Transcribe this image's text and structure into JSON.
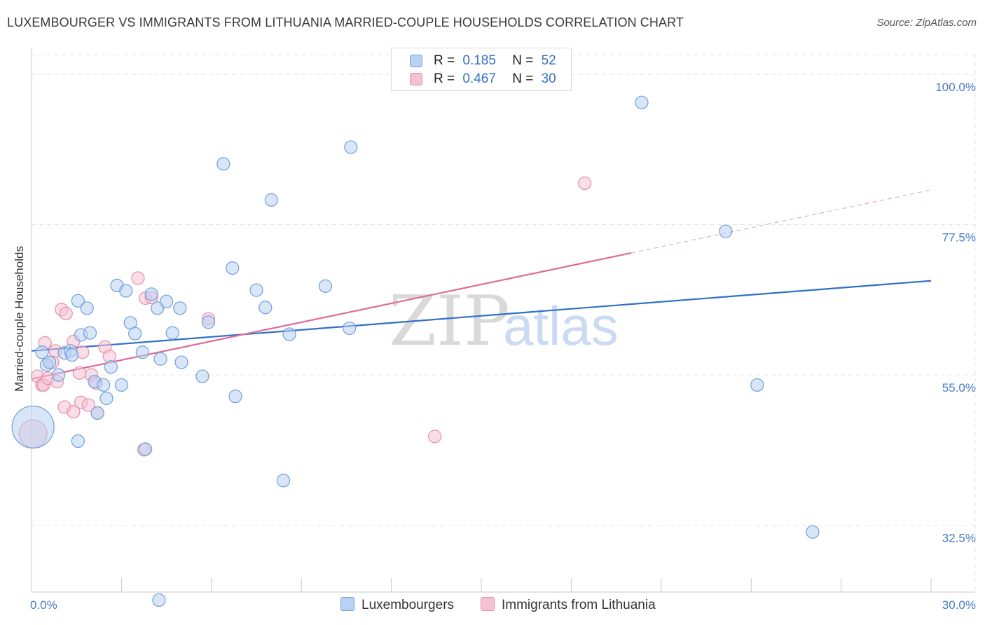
{
  "header": {
    "title": "LUXEMBOURGER VS IMMIGRANTS FROM LITHUANIA MARRIED-COUPLE HOUSEHOLDS CORRELATION CHART",
    "source": "Source: ZipAtlas.com"
  },
  "watermark": {
    "zip": "ZIP",
    "atlas": "atlas"
  },
  "legend": {
    "rows": [
      {
        "r_label": "R =",
        "r_value": "0.185",
        "n_label": "N =",
        "n_value": "52"
      },
      {
        "r_label": "R =",
        "r_value": "0.467",
        "n_label": "N =",
        "n_value": "30"
      }
    ]
  },
  "bottom_legend": {
    "series_a": "Luxembourgers",
    "series_b": "Immigrants from Lithuania"
  },
  "colors": {
    "blue_fill": "#b8d2f2",
    "blue_stroke": "#6f9fdc",
    "blue_line": "#2f6fcb",
    "pink_fill": "#f6c2d3",
    "pink_stroke": "#e58ead",
    "pink_line": "#e06a96",
    "grid": "#e3e3e3",
    "tick_text": "#4a7ac8"
  },
  "chart_data": {
    "type": "scatter",
    "title": "LUXEMBOURGER VS IMMIGRANTS FROM LITHUANIA MARRIED-COUPLE HOUSEHOLDS CORRELATION CHART",
    "xlabel": "",
    "ylabel": "Married-couple Households",
    "xlim": [
      0,
      30
    ],
    "ylim": [
      22.5,
      104
    ],
    "x_tick_labels": [
      "0.0%",
      "30.0%"
    ],
    "y_ticks": [
      {
        "value": 100.0,
        "label": "100.0%"
      },
      {
        "value": 77.5,
        "label": "77.5%"
      },
      {
        "value": 55.0,
        "label": "55.0%"
      },
      {
        "value": 32.5,
        "label": "32.5%"
      }
    ],
    "grid": true,
    "legend_position": "top-center",
    "series": [
      {
        "name": "Luxembourgers",
        "R": 0.185,
        "N": 52,
        "trend": {
          "x0": 0.0,
          "y0": 58.6,
          "x1": 30.0,
          "y1": 69.1,
          "dashed_from": null
        },
        "points": [
          [
            0.05,
            47.2
          ],
          [
            0.35,
            58.4
          ],
          [
            0.5,
            56.5
          ],
          [
            0.6,
            56.9
          ],
          [
            0.9,
            55.0
          ],
          [
            1.1,
            58.3
          ],
          [
            1.3,
            58.6
          ],
          [
            1.35,
            58.0
          ],
          [
            1.55,
            45.1
          ],
          [
            1.55,
            66.1
          ],
          [
            1.65,
            61.0
          ],
          [
            1.85,
            65.0
          ],
          [
            1.95,
            61.3
          ],
          [
            2.1,
            54.0
          ],
          [
            2.2,
            49.3
          ],
          [
            2.4,
            53.5
          ],
          [
            2.5,
            51.5
          ],
          [
            2.65,
            56.2
          ],
          [
            2.85,
            68.4
          ],
          [
            3.0,
            53.5
          ],
          [
            3.15,
            67.6
          ],
          [
            3.3,
            62.8
          ],
          [
            3.45,
            61.2
          ],
          [
            3.7,
            58.4
          ],
          [
            3.8,
            43.9
          ],
          [
            4.0,
            67.1
          ],
          [
            4.2,
            65.0
          ],
          [
            4.3,
            57.4
          ],
          [
            4.5,
            66.0
          ],
          [
            4.7,
            61.3
          ],
          [
            4.95,
            65.0
          ],
          [
            5.0,
            56.9
          ],
          [
            5.7,
            54.8
          ],
          [
            5.9,
            62.9
          ],
          [
            6.4,
            86.6
          ],
          [
            6.7,
            71.0
          ],
          [
            6.8,
            51.8
          ],
          [
            7.5,
            67.7
          ],
          [
            7.8,
            65.1
          ],
          [
            8.0,
            81.2
          ],
          [
            8.4,
            39.2
          ],
          [
            8.6,
            61.1
          ],
          [
            9.8,
            68.3
          ],
          [
            10.6,
            62.0
          ],
          [
            10.65,
            89.1
          ],
          [
            20.35,
            95.8
          ],
          [
            23.15,
            76.5
          ],
          [
            24.2,
            53.5
          ],
          [
            26.05,
            31.5
          ],
          [
            4.25,
            21.3
          ],
          [
            0.75,
            61.5
          ],
          [
            2.0,
            44.0
          ]
        ],
        "sizes": [
          30,
          9,
          9,
          9,
          9,
          9,
          9,
          9,
          9,
          9,
          9,
          9,
          9,
          9,
          9,
          9,
          9,
          9,
          9,
          9,
          9,
          9,
          9,
          9,
          9,
          9,
          9,
          9,
          9,
          9,
          9,
          9,
          9,
          9,
          9,
          9,
          9,
          9,
          9,
          9,
          9,
          9,
          9,
          9,
          9,
          9,
          9,
          9,
          9,
          9,
          0,
          0
        ]
      },
      {
        "name": "Immigrants from Lithuania",
        "R": 0.467,
        "N": 30,
        "trend": {
          "x0": 0.0,
          "y0": 54.4,
          "x1": 30.0,
          "y1": 82.7,
          "dashed_from": 20.0
        },
        "points": [
          [
            0.05,
            46.2
          ],
          [
            0.2,
            54.8
          ],
          [
            0.35,
            53.5
          ],
          [
            0.4,
            53.5
          ],
          [
            0.45,
            59.8
          ],
          [
            0.55,
            54.5
          ],
          [
            0.7,
            56.9
          ],
          [
            0.8,
            58.6
          ],
          [
            0.85,
            54.0
          ],
          [
            1.0,
            64.8
          ],
          [
            1.15,
            64.2
          ],
          [
            1.1,
            50.2
          ],
          [
            1.4,
            49.5
          ],
          [
            1.4,
            60.0
          ],
          [
            1.6,
            55.3
          ],
          [
            1.65,
            50.9
          ],
          [
            1.7,
            58.4
          ],
          [
            1.9,
            50.5
          ],
          [
            2.0,
            55.0
          ],
          [
            2.15,
            53.8
          ],
          [
            2.2,
            49.3
          ],
          [
            2.45,
            59.2
          ],
          [
            2.6,
            57.8
          ],
          [
            3.55,
            69.5
          ],
          [
            3.8,
            66.5
          ],
          [
            3.75,
            43.8
          ],
          [
            4.0,
            66.6
          ],
          [
            5.9,
            63.4
          ],
          [
            13.45,
            45.8
          ],
          [
            18.45,
            83.7
          ]
        ],
        "sizes": [
          20,
          9,
          9,
          9,
          9,
          9,
          9,
          9,
          9,
          9,
          9,
          9,
          9,
          9,
          9,
          9,
          9,
          9,
          9,
          9,
          9,
          9,
          9,
          9,
          9,
          9,
          9,
          9,
          9,
          9
        ]
      }
    ]
  }
}
